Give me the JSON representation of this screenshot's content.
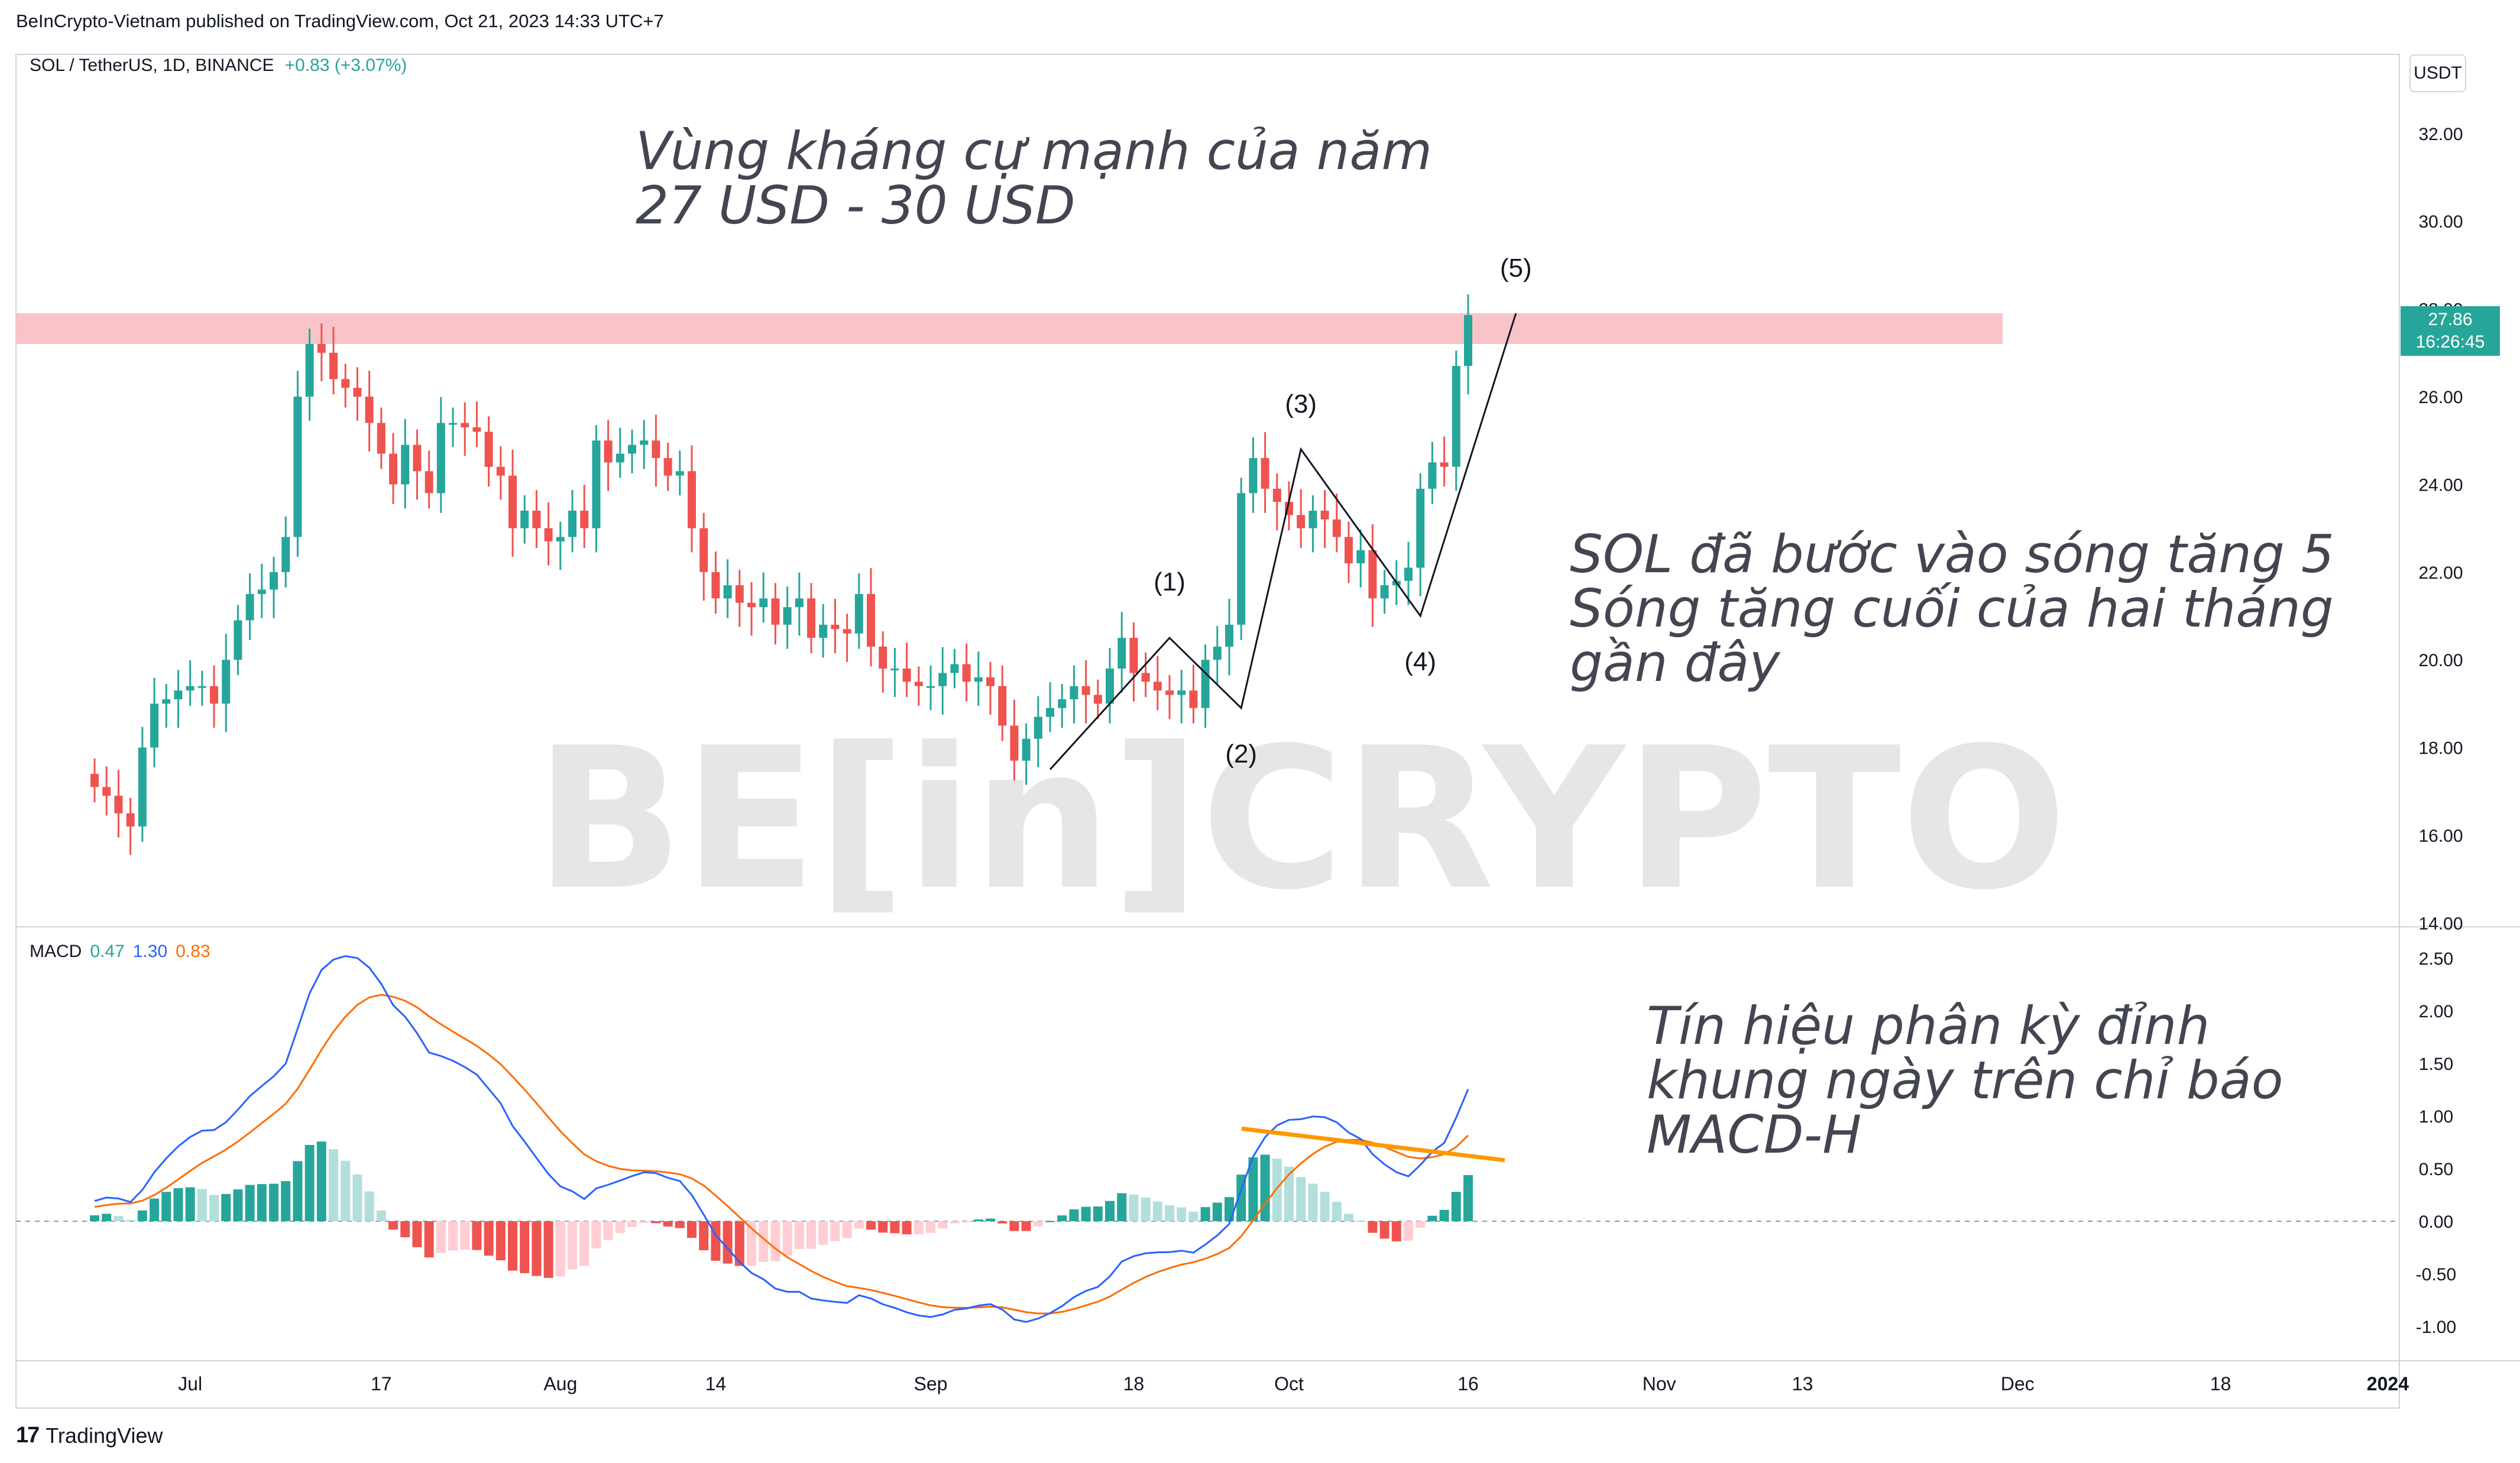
{
  "header": "BeInCrypto-Vietnam published on TradingView.com, Oct 21, 2023 14:33 UTC+7",
  "legend": {
    "symbol": "SOL / TetherUS, 1D, BINANCE",
    "change": "+0.83 (+3.07%)"
  },
  "unit": "USDT",
  "last_price": {
    "value": "27.86",
    "countdown": "16:26:45"
  },
  "annotations": {
    "resistance": "Vùng kháng cự mạnh của năm\n27 USD - 30 USD",
    "wave": "SOL đã bước vào sóng tăng 5\nSóng tăng cuối của hai tháng\ngần đây",
    "divergence": "Tín hiệu phân kỳ đỉnh\nkhung ngày trên chỉ báo\nMACD-H"
  },
  "macd_legend": {
    "name": "MACD",
    "hist": "0.47",
    "macd": "1.30",
    "signal": "0.83"
  },
  "watermark": "BE[in]CRYPTO",
  "footer": "TradingView",
  "colors": {
    "up": "#26a69a",
    "down": "#ef5350",
    "zone": "#f8c4c8",
    "macd": "#2962ff",
    "signal": "#ff6d00",
    "trend": "#ff9800"
  },
  "chart_data": {
    "type": "candlestick",
    "symbol": "SOL / TetherUS",
    "timeframe": "1D",
    "exchange": "BINANCE",
    "x_ticks": [
      "Jul",
      "17",
      "Aug",
      "14",
      "Sep",
      "18",
      "Oct",
      "16",
      "Nov",
      "13",
      "Dec",
      "18",
      "2024"
    ],
    "y_ticks": [
      "32.00",
      "30.00",
      "28.00",
      "26.00",
      "24.00",
      "22.00",
      "20.00",
      "18.00",
      "16.00",
      "14.00"
    ],
    "ylim": [
      14,
      33
    ],
    "resistance_zone": [
      27.2,
      27.9
    ],
    "wave_labels": [
      {
        "label": "(1)",
        "date": "2023-09-21",
        "price": 20.5
      },
      {
        "label": "(2)",
        "date": "2023-09-27",
        "price": 18.9
      },
      {
        "label": "(3)",
        "date": "2023-10-02",
        "price": 24.8
      },
      {
        "label": "(4)",
        "date": "2023-10-12",
        "price": 21.0
      },
      {
        "label": "(5)",
        "date": "2023-10-20",
        "price": 27.9
      }
    ],
    "candles_note": "approximate daily closes read from chart",
    "dates_start": "2023-06-23",
    "closes": [
      17.1,
      16.9,
      16.5,
      16.2,
      18.0,
      19.0,
      19.1,
      19.3,
      19.4,
      19.4,
      19.0,
      20.0,
      20.9,
      21.5,
      21.6,
      22.0,
      22.8,
      26.0,
      27.2,
      27.0,
      26.4,
      26.2,
      26.0,
      25.4,
      24.7,
      24.0,
      24.9,
      24.3,
      23.8,
      25.4,
      25.4,
      25.3,
      25.2,
      24.4,
      24.2,
      23.0,
      23.4,
      23.0,
      22.7,
      22.8,
      23.4,
      23.0,
      25.0,
      24.5,
      24.7,
      24.9,
      25.0,
      24.6,
      24.2,
      24.3,
      23.0,
      22.0,
      21.4,
      21.7,
      21.3,
      21.2,
      21.4,
      20.8,
      21.2,
      21.4,
      20.5,
      20.8,
      20.7,
      20.6,
      21.5,
      20.3,
      19.8,
      19.8,
      19.5,
      19.4,
      19.4,
      19.7,
      19.9,
      19.5,
      19.6,
      19.4,
      18.5,
      17.7,
      18.2,
      18.7,
      18.9,
      19.1,
      19.4,
      19.2,
      19.0,
      19.8,
      20.5,
      19.7,
      19.5,
      19.3,
      19.2,
      19.3,
      18.9,
      20.0,
      20.3,
      20.8,
      23.8,
      24.6,
      23.9,
      23.6,
      23.3,
      23.0,
      23.4,
      23.2,
      22.8,
      22.2,
      22.5,
      21.4,
      21.7,
      21.8,
      22.1,
      23.9,
      24.5,
      24.4,
      26.7,
      27.86
    ],
    "macd": {
      "name": "MACD",
      "values": {
        "hist": 0.47,
        "macd": 1.3,
        "signal": 0.83
      },
      "ylim": [
        -1.3,
        2.6
      ],
      "y_ticks": [
        "2.50",
        "2.00",
        "1.50",
        "1.00",
        "0.50",
        "0.00",
        "-0.50",
        "-1.00"
      ]
    }
  }
}
